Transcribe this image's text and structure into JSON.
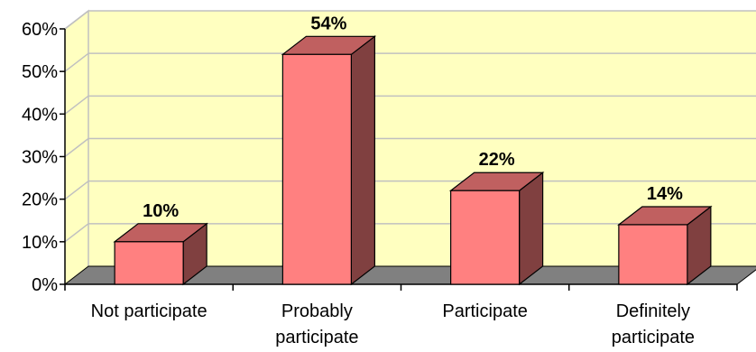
{
  "chart_data": {
    "type": "bar",
    "categories": [
      [
        "Not participate"
      ],
      [
        "Probably",
        "participate"
      ],
      [
        "Participate"
      ],
      [
        "Definitely",
        "participate"
      ]
    ],
    "values": [
      10,
      54,
      22,
      14
    ],
    "value_labels": [
      "10%",
      "54%",
      "22%",
      "14%"
    ],
    "ylim": [
      0,
      60
    ],
    "yticks": [
      0,
      10,
      20,
      30,
      40,
      50,
      60
    ],
    "ytick_labels": [
      "0%",
      "10%",
      "20%",
      "30%",
      "40%",
      "50%",
      "60%"
    ],
    "grid": true,
    "three_d": true,
    "colors": {
      "plot_background": "#ffffc0",
      "floor": "#808080",
      "grid": "#c0c0c0",
      "bar_front": "#ff8080",
      "bar_top": "#c06060",
      "bar_side": "#804040",
      "outline": "#000000"
    }
  }
}
